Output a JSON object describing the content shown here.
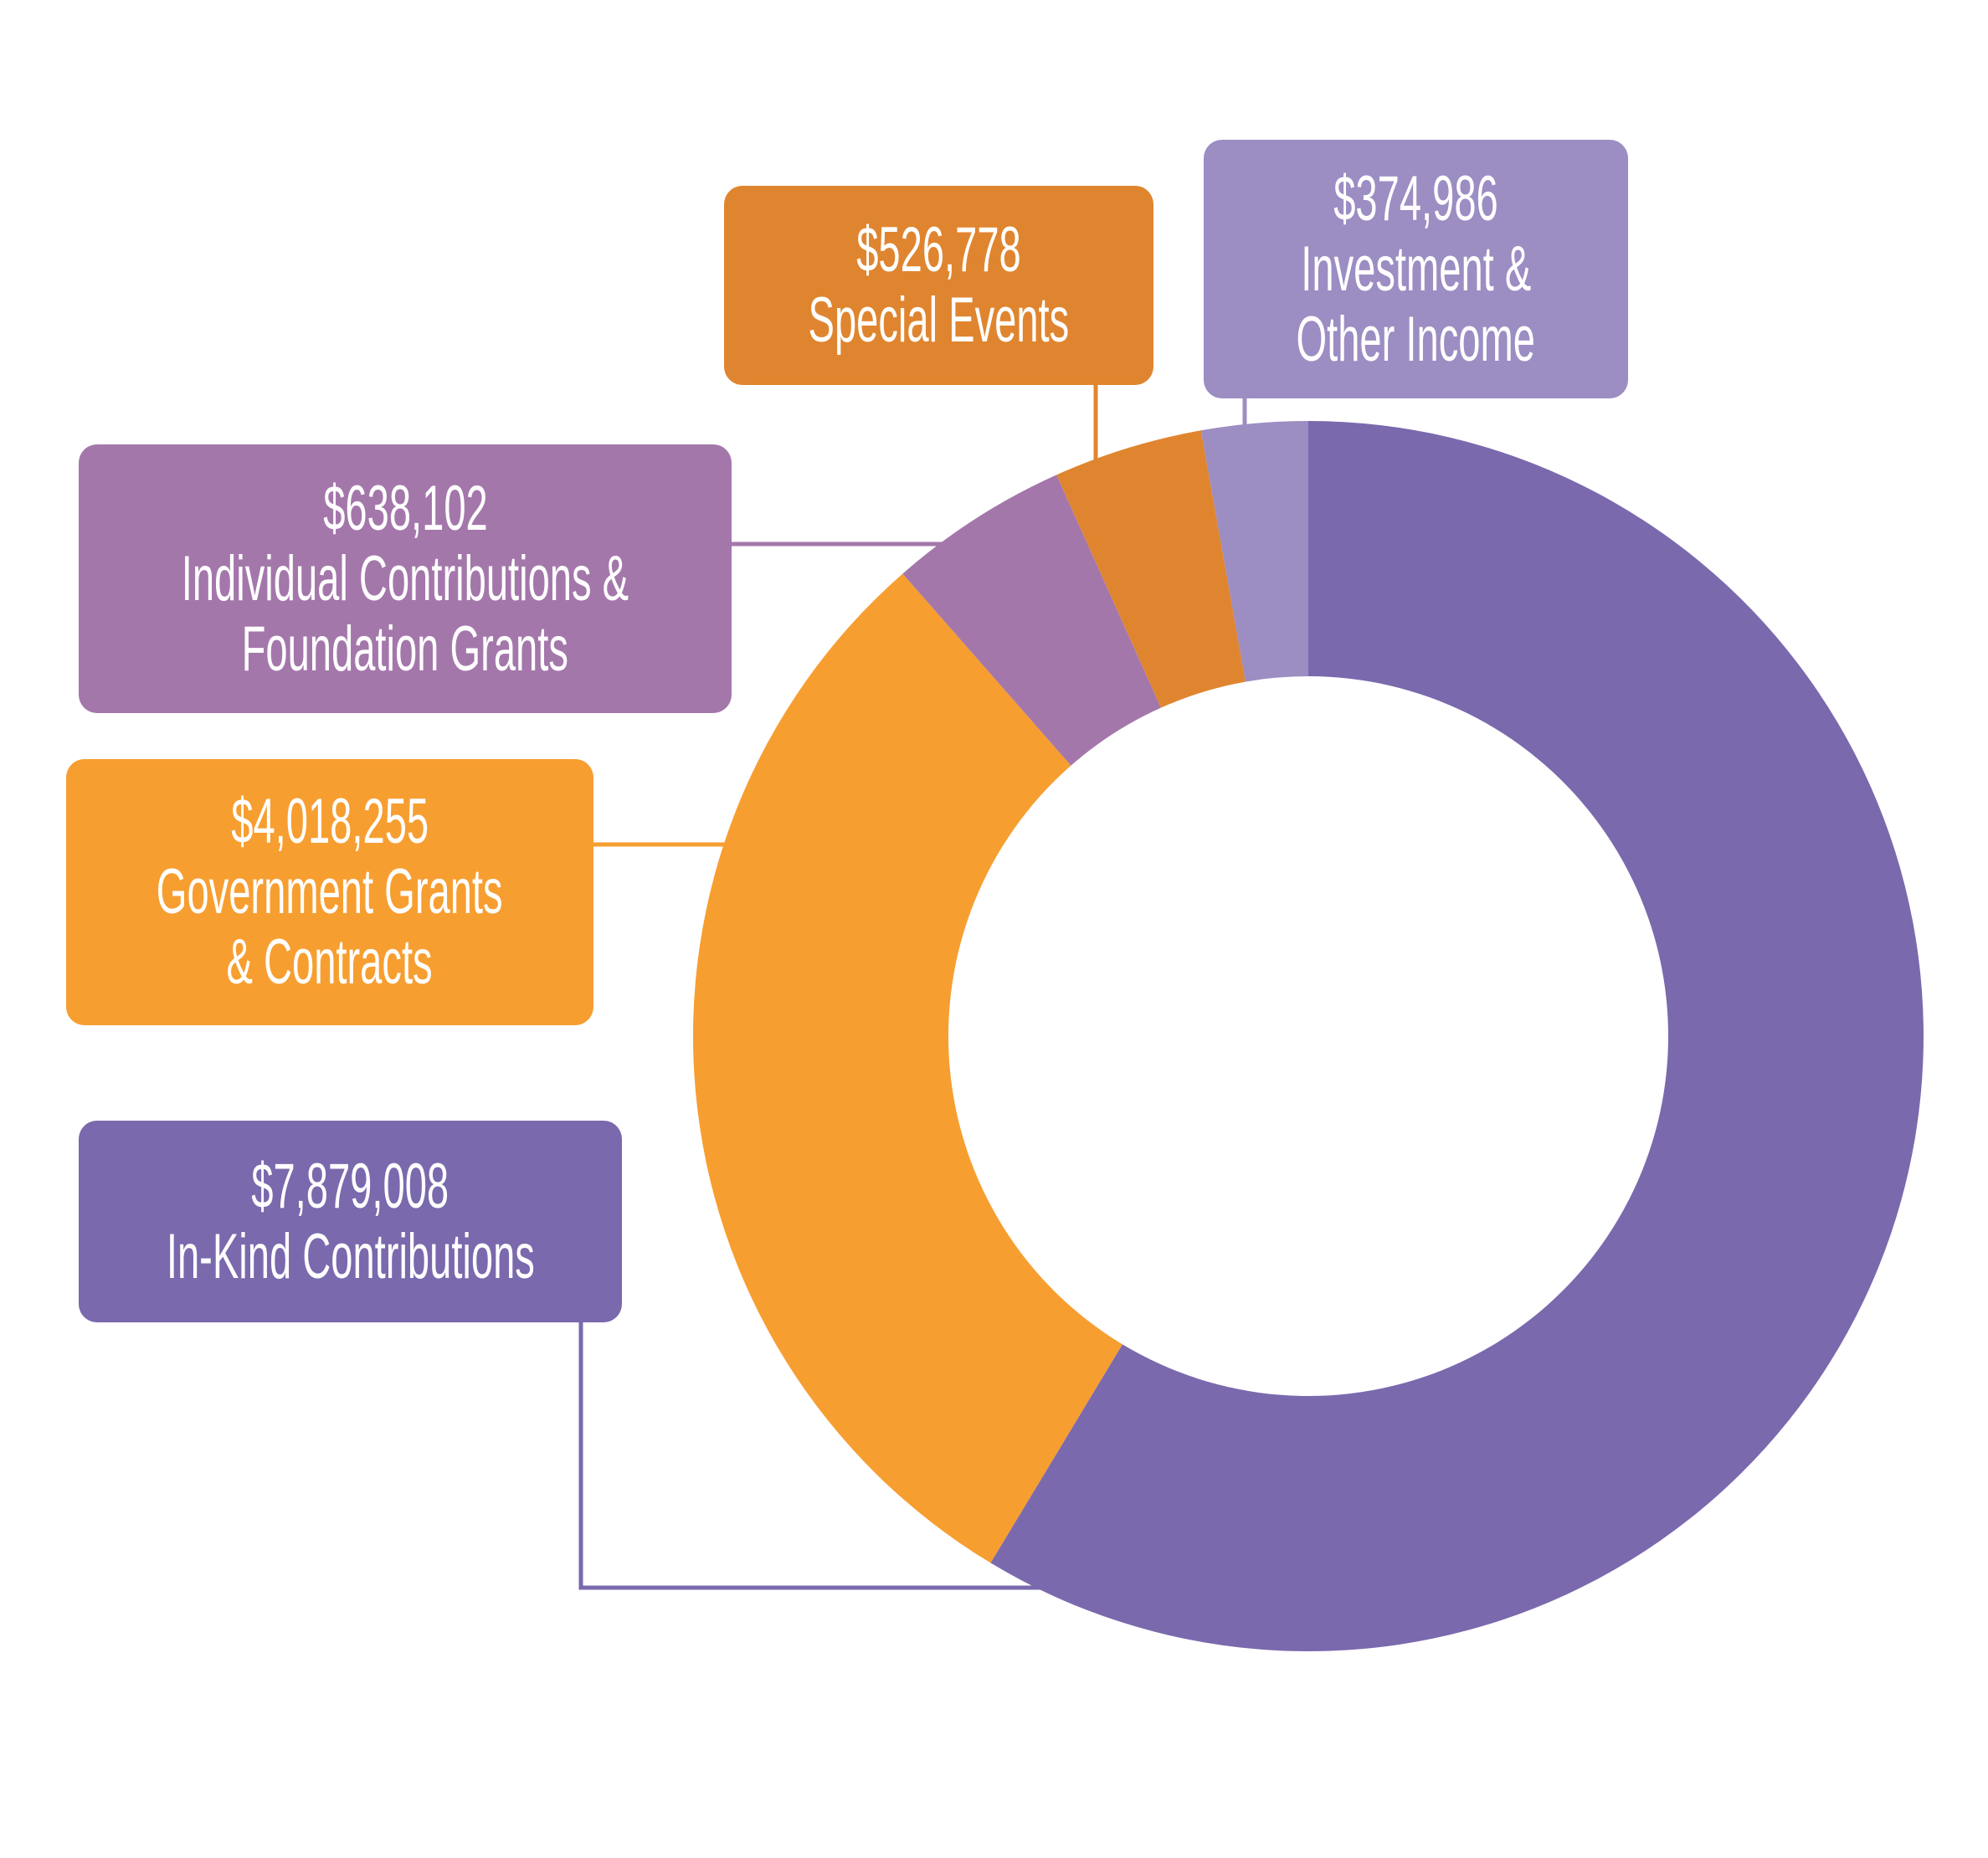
{
  "chart_data": {
    "type": "pie",
    "style": "donut",
    "start": "top, clockwise",
    "slices": [
      {
        "label": "In-Kind Contributions",
        "value": 7879008,
        "value_label": "$7,879,008",
        "lines": [
          "In-Kind Contributions"
        ],
        "color": "#7a69ad"
      },
      {
        "label": "Government Grants & Contracts",
        "value": 4018255,
        "value_label": "$4,018,255",
        "lines": [
          "Government Grants",
          "& Contracts"
        ],
        "color": "#f79e31"
      },
      {
        "label": "Individual Contributions & Foundation Grants",
        "value": 638102,
        "value_label": "$638,102",
        "lines": [
          "Individual Contributions &",
          "Foundation Grants"
        ],
        "color": "#a477ab"
      },
      {
        "label": "Special Events",
        "value": 526778,
        "value_label": "$526,778",
        "lines": [
          "Special Events"
        ],
        "color": "#e0852f"
      },
      {
        "label": "Investment & Other Income",
        "value": 374986,
        "value_label": "$374,986",
        "lines": [
          "Investment &",
          "Other Income"
        ],
        "color": "#9c8dc3"
      }
    ]
  }
}
